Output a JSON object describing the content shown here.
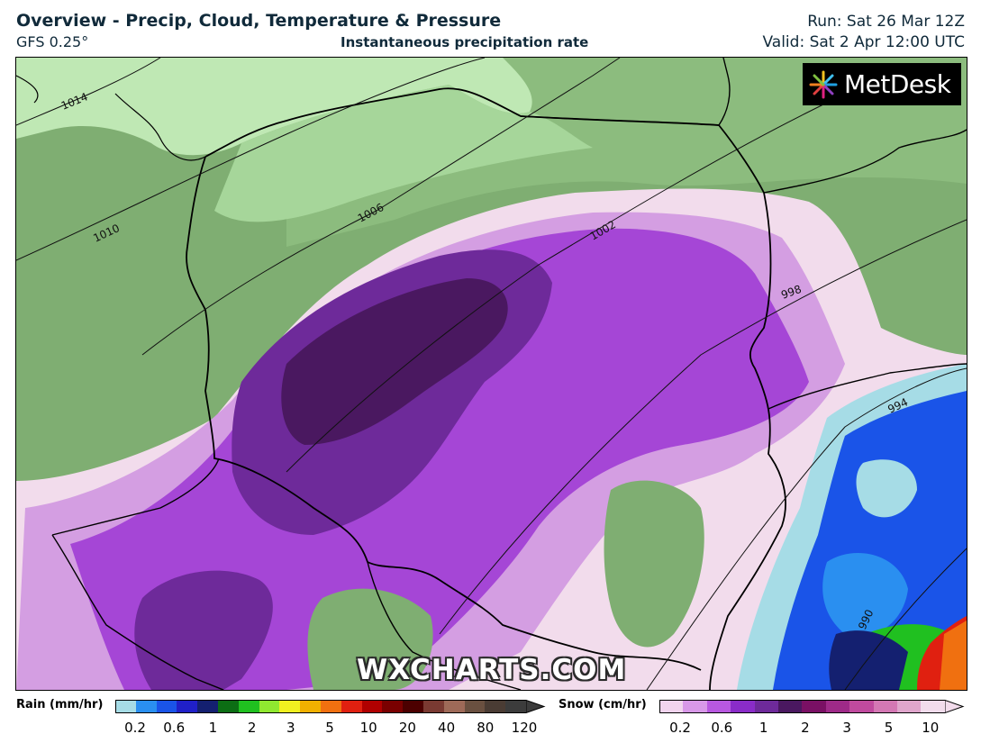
{
  "header": {
    "title": "Overview - Precip, Cloud, Temperature & Pressure",
    "model": "GFS 0.25°",
    "subtitle": "Instantaneous precipitation rate",
    "run": "Run: Sat 26 Mar 12Z",
    "valid": "Valid: Sat 2 Apr 12:00 UTC"
  },
  "logo": {
    "text": "MetDesk"
  },
  "watermark": "WXCHARTS.COM",
  "isobars": [
    "1014",
    "1010",
    "1006",
    "1002",
    "998",
    "994",
    "990"
  ],
  "legend": {
    "rain": {
      "label": "Rain (mm/hr)",
      "colors": [
        "#a6dce6",
        "#2a8ff0",
        "#1a54e8",
        "#2020c8",
        "#142070",
        "#0c6e14",
        "#20c020",
        "#90e830",
        "#f0f020",
        "#f0b000",
        "#f07010",
        "#e02010",
        "#b00000",
        "#7a0000",
        "#4c0000",
        "#7a3a32",
        "#9e6a58",
        "#6a5040",
        "#4a3c34",
        "#3c3c3c"
      ],
      "ticks": [
        "0.2",
        "0.6",
        "1",
        "2",
        "3",
        "5",
        "10",
        "20",
        "40",
        "80",
        "120"
      ]
    },
    "snow": {
      "label": "Snow (cm/hr)",
      "colors": [
        "#f2d4ee",
        "#d898e8",
        "#b858e0",
        "#8a2cc8",
        "#6e2a9a",
        "#4a1860",
        "#7a1064",
        "#9e2a88",
        "#c04a9e",
        "#d478b4",
        "#e0a6cc",
        "#f2dcec"
      ],
      "ticks": [
        "0.2",
        "0.6",
        "1",
        "2",
        "3",
        "5",
        "10"
      ]
    }
  },
  "colors": {
    "land_cloud": "#7fae72",
    "sea": "#bfe8b4",
    "snow_light": "#f2dcec",
    "snow_mid": "#d49ee2",
    "snow_heavy": "#a546d6",
    "snow_very_heavy": "#6e2a9a",
    "rain_light": "#a6dce6",
    "rain_mid": "#1a54e8",
    "rain_heavy": "#20c020"
  }
}
